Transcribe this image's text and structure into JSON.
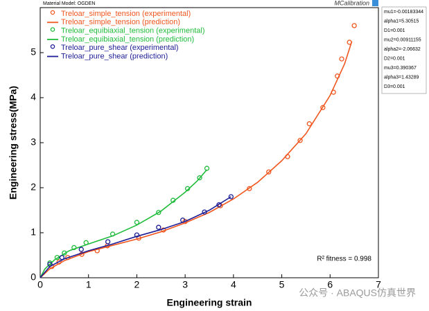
{
  "chart_data": {
    "type": "scatter",
    "material_model": "Material Model: OGDEN",
    "brand": "MCalibration",
    "xlabel": "Engineering strain",
    "ylabel": "Engineering stress(MPa)",
    "xlim": [
      0,
      7
    ],
    "ylim": [
      0,
      6
    ],
    "xticks": [
      0,
      1,
      2,
      3,
      4,
      5,
      6,
      7
    ],
    "yticks": [
      0,
      1,
      2,
      3,
      4,
      5
    ],
    "parameters": [
      "mu1=-0.00183344",
      "alpha1=5.30515",
      "D1=0.001",
      "mu2=0.00911155",
      "alpha2=-2.06632",
      "D2=0.001",
      "mu3=0.390367",
      "alpha3=1.43289",
      "D3=0.001"
    ],
    "fitness": "R² fitness = 0.998",
    "watermark": "公众号 · ABAQUS仿真世界",
    "series": [
      {
        "name": "Treloar_simple_tension (experimental)",
        "color": "#f0561e",
        "style": "marker",
        "x": [
          0.24,
          0.39,
          0.57,
          0.86,
          1.18,
          1.39,
          2.04,
          2.55,
          3.0,
          3.73,
          4.33,
          4.73,
          5.12,
          5.38,
          5.57,
          5.85,
          6.07,
          6.15,
          6.24,
          6.4,
          6.5
        ],
        "values": [
          0.25,
          0.35,
          0.45,
          0.52,
          0.6,
          0.71,
          0.88,
          1.06,
          1.25,
          1.6,
          1.98,
          2.35,
          2.69,
          3.05,
          3.42,
          3.78,
          4.12,
          4.48,
          4.86,
          5.23,
          5.6
        ]
      },
      {
        "name": "Treloar_simple_tension (prediction)",
        "color": "#f0561e",
        "style": "line",
        "x": [
          0,
          0.2,
          0.5,
          1,
          1.5,
          2,
          2.5,
          3,
          3.5,
          4,
          4.5,
          5,
          5.5,
          6,
          6.3,
          6.45
        ],
        "values": [
          0,
          0.2,
          0.38,
          0.58,
          0.72,
          0.86,
          1.02,
          1.22,
          1.45,
          1.75,
          2.12,
          2.6,
          3.2,
          4.05,
          4.75,
          5.25
        ]
      },
      {
        "name": "Treloar_equibiaxial_tension (experimental)",
        "color": "#1fbb3a",
        "style": "marker",
        "x": [
          0.2,
          0.35,
          0.5,
          0.7,
          0.95,
          1.5,
          2.0,
          2.45,
          2.75,
          3.05,
          3.3,
          3.45
        ],
        "values": [
          0.33,
          0.45,
          0.55,
          0.67,
          0.78,
          0.97,
          1.23,
          1.45,
          1.72,
          1.98,
          2.22,
          2.43
        ]
      },
      {
        "name": "Treloar_equibiaxial_tension (prediction)",
        "color": "#1fbb3a",
        "style": "line",
        "x": [
          0,
          0.1,
          0.3,
          0.6,
          1,
          1.5,
          2,
          2.5,
          3,
          3.25,
          3.45
        ],
        "values": [
          0,
          0.2,
          0.4,
          0.6,
          0.75,
          0.93,
          1.17,
          1.48,
          1.9,
          2.15,
          2.4
        ]
      },
      {
        "name": "Treloar_pure_shear (experimental)",
        "color": "#1c1c96",
        "style": "marker",
        "x": [
          0.2,
          0.45,
          0.85,
          1.4,
          2.0,
          2.45,
          2.95,
          3.4,
          3.7,
          3.95
        ],
        "values": [
          0.3,
          0.45,
          0.63,
          0.8,
          0.95,
          1.12,
          1.28,
          1.46,
          1.62,
          1.8
        ]
      },
      {
        "name": "Treloar_pure_shear (prediction)",
        "color": "#1c1c96",
        "style": "line",
        "x": [
          0,
          0.2,
          0.5,
          1,
          1.5,
          2,
          2.5,
          3,
          3.5,
          3.95
        ],
        "values": [
          0,
          0.25,
          0.42,
          0.6,
          0.75,
          0.92,
          1.07,
          1.25,
          1.5,
          1.8
        ]
      }
    ]
  }
}
